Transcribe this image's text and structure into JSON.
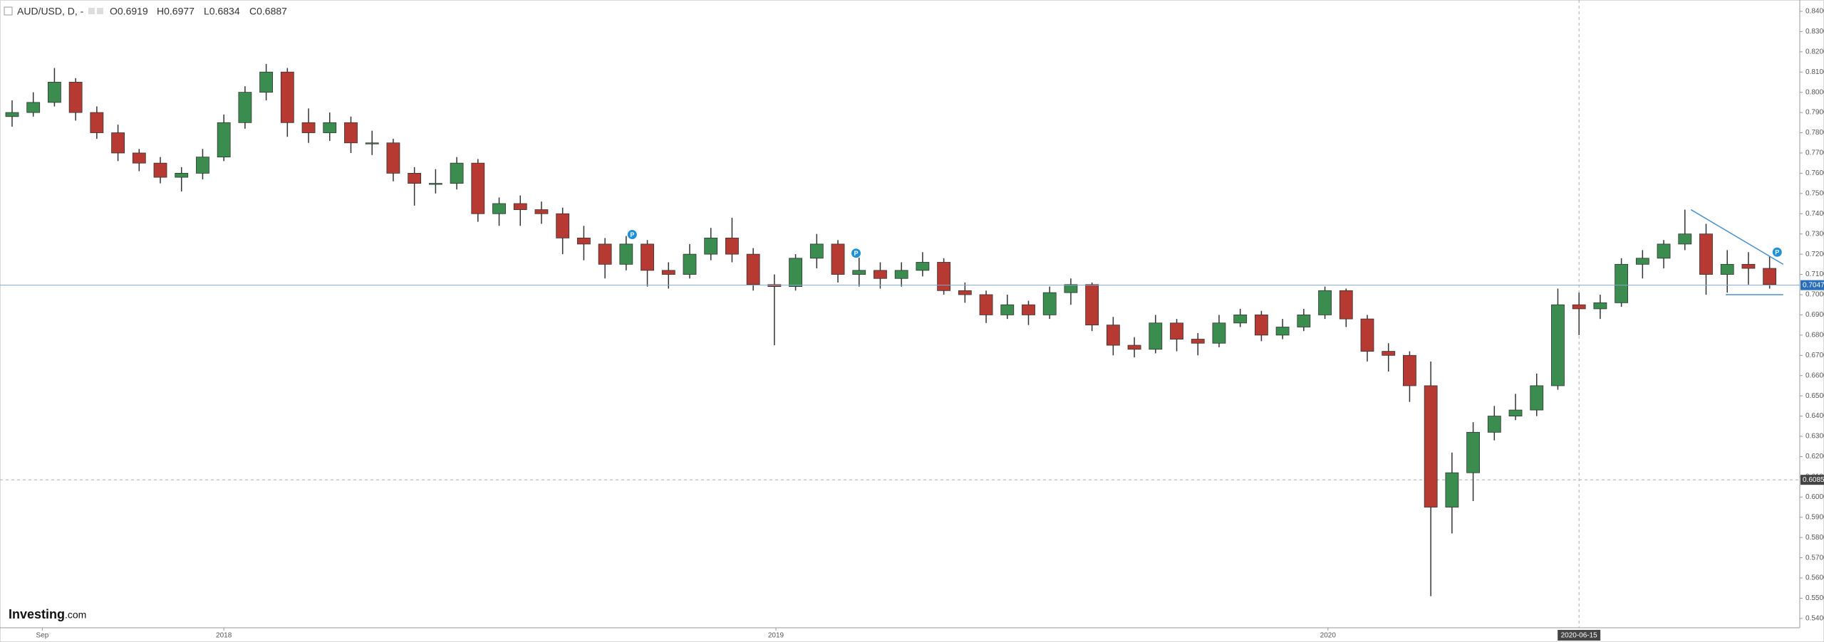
{
  "chart_data": {
    "type": "candlestick",
    "header": {
      "symbol": "AUD/USD, D, -",
      "ohlc": [
        "O0.6919",
        "H0.6977",
        "L0.6834",
        "C0.6887"
      ]
    },
    "watermark": [
      "Investing",
      ".com"
    ],
    "up_color": "#3b8c4f",
    "down_color": "#b73a32",
    "x": [
      "2017-08-14",
      "2017-08-28",
      "2017-09-11",
      "2017-09-25",
      "2017-10-09",
      "2017-10-23",
      "2017-11-06",
      "2017-11-20",
      "2017-12-04",
      "2017-12-18",
      "2018-01-01",
      "2018-01-15",
      "2018-01-29",
      "2018-02-12",
      "2018-02-26",
      "2018-03-12",
      "2018-03-26",
      "2018-04-09",
      "2018-04-23",
      "2018-05-07",
      "2018-05-21",
      "2018-06-04",
      "2018-06-18",
      "2018-07-02",
      "2018-07-16",
      "2018-07-30",
      "2018-08-13",
      "2018-08-27",
      "2018-09-10",
      "2018-09-24",
      "2018-10-08",
      "2018-10-22",
      "2018-11-05",
      "2018-11-19",
      "2018-12-03",
      "2018-12-17",
      "2018-12-31",
      "2019-01-14",
      "2019-01-28",
      "2019-02-11",
      "2019-02-25",
      "2019-03-11",
      "2019-03-25",
      "2019-04-08",
      "2019-04-22",
      "2019-05-06",
      "2019-05-20",
      "2019-06-03",
      "2019-06-17",
      "2019-07-01",
      "2019-07-15",
      "2019-07-29",
      "2019-08-12",
      "2019-08-26",
      "2019-09-09",
      "2019-09-23",
      "2019-10-07",
      "2019-10-21",
      "2019-11-04",
      "2019-11-18",
      "2019-12-02",
      "2019-12-16",
      "2019-12-30",
      "2020-01-13",
      "2020-01-27",
      "2020-02-10",
      "2020-02-24",
      "2020-03-09",
      "2020-03-23",
      "2020-04-06",
      "2020-04-20",
      "2020-05-04",
      "2020-05-18",
      "2020-06-01",
      "2020-06-15",
      "2020-06-29",
      "2020-07-13",
      "2020-07-27",
      "2020-08-10",
      "2020-08-24",
      "2020-09-07",
      "2020-09-21",
      "2020-10-05",
      "2020-10-19"
    ],
    "open": [
      0.788,
      0.79,
      0.795,
      0.805,
      0.79,
      0.78,
      0.77,
      0.765,
      0.758,
      0.76,
      0.768,
      0.785,
      0.8,
      0.81,
      0.785,
      0.78,
      0.785,
      0.775,
      0.775,
      0.76,
      0.755,
      0.755,
      0.765,
      0.74,
      0.745,
      0.742,
      0.74,
      0.728,
      0.725,
      0.715,
      0.725,
      0.712,
      0.71,
      0.72,
      0.728,
      0.72,
      0.705,
      0.704,
      0.718,
      0.725,
      0.71,
      0.712,
      0.708,
      0.712,
      0.716,
      0.702,
      0.7,
      0.69,
      0.695,
      0.69,
      0.701,
      0.705,
      0.685,
      0.675,
      0.673,
      0.686,
      0.678,
      0.676,
      0.686,
      0.69,
      0.68,
      0.684,
      0.69,
      0.702,
      0.688,
      0.672,
      0.67,
      0.655,
      0.595,
      0.612,
      0.632,
      0.64,
      0.643,
      0.655,
      0.695,
      0.693,
      0.696,
      0.715,
      0.718,
      0.725,
      0.73,
      0.71,
      0.715,
      0.713
    ],
    "high": [
      0.796,
      0.8,
      0.812,
      0.807,
      0.793,
      0.784,
      0.772,
      0.768,
      0.763,
      0.772,
      0.789,
      0.803,
      0.814,
      0.812,
      0.792,
      0.79,
      0.788,
      0.781,
      0.777,
      0.763,
      0.762,
      0.768,
      0.767,
      0.748,
      0.749,
      0.746,
      0.743,
      0.734,
      0.728,
      0.729,
      0.727,
      0.716,
      0.725,
      0.733,
      0.738,
      0.723,
      0.71,
      0.72,
      0.73,
      0.727,
      0.721,
      0.716,
      0.716,
      0.721,
      0.718,
      0.706,
      0.702,
      0.7,
      0.697,
      0.704,
      0.708,
      0.706,
      0.689,
      0.679,
      0.69,
      0.688,
      0.681,
      0.69,
      0.693,
      0.692,
      0.688,
      0.693,
      0.704,
      0.703,
      0.69,
      0.676,
      0.672,
      0.667,
      0.622,
      0.637,
      0.645,
      0.651,
      0.661,
      0.703,
      0.701,
      0.7,
      0.718,
      0.722,
      0.727,
      0.742,
      0.735,
      0.722,
      0.721,
      0.719
    ],
    "low": [
      0.783,
      0.788,
      0.793,
      0.786,
      0.777,
      0.766,
      0.761,
      0.755,
      0.751,
      0.757,
      0.766,
      0.782,
      0.796,
      0.778,
      0.775,
      0.776,
      0.77,
      0.769,
      0.756,
      0.744,
      0.75,
      0.752,
      0.736,
      0.734,
      0.734,
      0.735,
      0.72,
      0.717,
      0.708,
      0.712,
      0.704,
      0.703,
      0.708,
      0.717,
      0.716,
      0.702,
      0.675,
      0.702,
      0.713,
      0.706,
      0.704,
      0.703,
      0.704,
      0.709,
      0.7,
      0.696,
      0.686,
      0.688,
      0.685,
      0.688,
      0.695,
      0.682,
      0.67,
      0.669,
      0.671,
      0.672,
      0.67,
      0.674,
      0.684,
      0.677,
      0.678,
      0.682,
      0.688,
      0.684,
      0.667,
      0.662,
      0.647,
      0.551,
      0.582,
      0.598,
      0.628,
      0.638,
      0.64,
      0.653,
      0.68,
      0.688,
      0.694,
      0.708,
      0.713,
      0.722,
      0.7,
      0.701,
      0.705,
      0.703
    ],
    "close": [
      0.79,
      0.795,
      0.805,
      0.79,
      0.78,
      0.77,
      0.765,
      0.758,
      0.76,
      0.768,
      0.785,
      0.8,
      0.81,
      0.785,
      0.78,
      0.785,
      0.775,
      0.775,
      0.76,
      0.755,
      0.755,
      0.765,
      0.74,
      0.745,
      0.742,
      0.74,
      0.728,
      0.725,
      0.715,
      0.725,
      0.712,
      0.71,
      0.72,
      0.728,
      0.72,
      0.705,
      0.704,
      0.718,
      0.725,
      0.71,
      0.712,
      0.708,
      0.712,
      0.716,
      0.702,
      0.7,
      0.69,
      0.695,
      0.69,
      0.701,
      0.705,
      0.685,
      0.675,
      0.673,
      0.686,
      0.678,
      0.676,
      0.686,
      0.69,
      0.68,
      0.684,
      0.69,
      0.702,
      0.688,
      0.672,
      0.67,
      0.655,
      0.595,
      0.612,
      0.632,
      0.64,
      0.643,
      0.655,
      0.695,
      0.693,
      0.696,
      0.715,
      0.718,
      0.725,
      0.73,
      0.71,
      0.715,
      0.713,
      0.705
    ],
    "xlim": [
      "2017-08-06",
      "2020-10-30"
    ],
    "xticks": [
      {
        "value": "2017-09-03",
        "label": "Sep"
      },
      {
        "value": "2018-01-01",
        "label": "2018"
      },
      {
        "value": "2019-01-01",
        "label": "2019"
      },
      {
        "value": "2020-01-01",
        "label": "2020"
      }
    ],
    "ylim": [
      0.5354,
      0.8456
    ],
    "yticks": [
      {
        "value": 0.54,
        "label": "0.5400"
      },
      {
        "value": 0.55,
        "label": "0.5500"
      },
      {
        "value": 0.56,
        "label": "0.5600"
      },
      {
        "value": 0.57,
        "label": "0.5700"
      },
      {
        "value": 0.58,
        "label": "0.5800"
      },
      {
        "value": 0.59,
        "label": "0.5900"
      },
      {
        "value": 0.6,
        "label": "0.6000"
      },
      {
        "value": 0.61,
        "label": "0.6100"
      },
      {
        "value": 0.62,
        "label": "0.6200"
      },
      {
        "value": 0.63,
        "label": "0.6300"
      },
      {
        "value": 0.64,
        "label": "0.6400"
      },
      {
        "value": 0.65,
        "label": "0.6500"
      },
      {
        "value": 0.66,
        "label": "0.6600"
      },
      {
        "value": 0.67,
        "label": "0.6700"
      },
      {
        "value": 0.68,
        "label": "0.6800"
      },
      {
        "value": 0.69,
        "label": "0.6900"
      },
      {
        "value": 0.7,
        "label": "0.7000"
      },
      {
        "value": 0.71,
        "label": "0.7100"
      },
      {
        "value": 0.72,
        "label": "0.7200"
      },
      {
        "value": 0.73,
        "label": "0.7300"
      },
      {
        "value": 0.74,
        "label": "0.7400"
      },
      {
        "value": 0.75,
        "label": "0.7500"
      },
      {
        "value": 0.76,
        "label": "0.7600"
      },
      {
        "value": 0.77,
        "label": "0.7700"
      },
      {
        "value": 0.78,
        "label": "0.7800"
      },
      {
        "value": 0.79,
        "label": "0.7900"
      },
      {
        "value": 0.8,
        "label": "0.8000"
      },
      {
        "value": 0.81,
        "label": "0.8100"
      },
      {
        "value": 0.82,
        "label": "0.8200"
      },
      {
        "value": 0.83,
        "label": "0.8300"
      },
      {
        "value": 0.84,
        "label": "0.8400"
      }
    ],
    "price_line": 0.7047,
    "crosshair": {
      "x": "2020-06-15",
      "y": 0.6085
    },
    "trendlines": [
      {
        "x": [
          "2020-08-28",
          "2020-10-28"
        ],
        "y": [
          0.742,
          0.715
        ]
      },
      {
        "x": [
          "2020-09-20",
          "2020-10-28"
        ],
        "y": [
          0.7,
          0.7
        ]
      }
    ],
    "markers": [
      {
        "x": "2018-09-28",
        "y": 0.7297,
        "label": "P"
      },
      {
        "x": "2019-02-23",
        "y": 0.7205,
        "label": "P"
      },
      {
        "x": "2020-10-24",
        "y": 0.721,
        "label": "P"
      }
    ]
  }
}
